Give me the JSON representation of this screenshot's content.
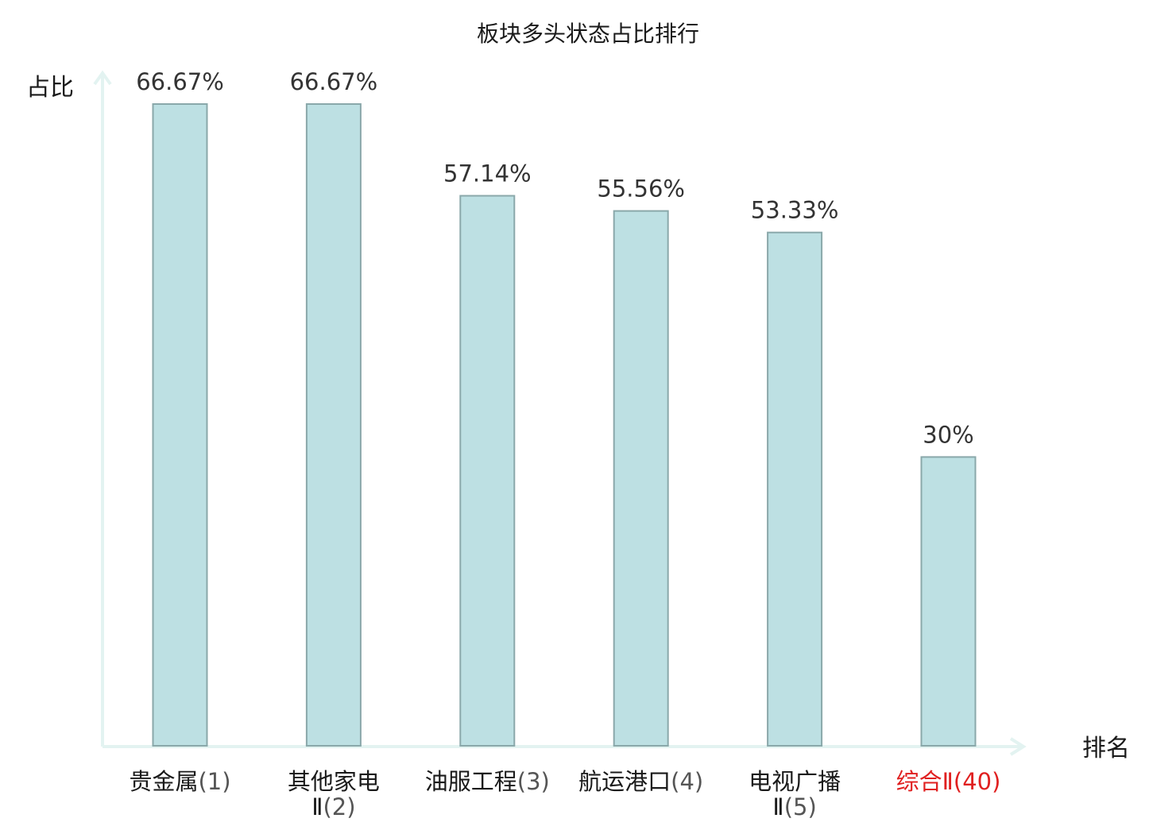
{
  "chart_data": {
    "type": "bar",
    "title": "板块多头状态占比排行",
    "ylabel": "占比",
    "xlabel": "排名",
    "ylim": [
      0,
      70
    ],
    "grid": false,
    "legend": "none",
    "categories": [
      {
        "line1": "贵金属",
        "line1_rank": "(1)",
        "line2": "",
        "line2_rank": "",
        "highlight": false
      },
      {
        "line1": "其他家电",
        "line1_rank": "",
        "line2": "Ⅱ",
        "line2_rank": "(2)",
        "highlight": false
      },
      {
        "line1": "油服工程",
        "line1_rank": "(3)",
        "line2": "",
        "line2_rank": "",
        "highlight": false
      },
      {
        "line1": "航运港口",
        "line1_rank": "(4)",
        "line2": "",
        "line2_rank": "",
        "highlight": false
      },
      {
        "line1": "电视广播",
        "line1_rank": "",
        "line2": "Ⅱ",
        "line2_rank": "(5)",
        "highlight": false
      },
      {
        "line1": "综合Ⅱ",
        "line1_rank": "(40)",
        "line2": "",
        "line2_rank": "",
        "highlight": true
      }
    ],
    "values": [
      66.67,
      66.67,
      57.14,
      55.56,
      53.33,
      30
    ],
    "value_labels": [
      "66.67%",
      "66.67%",
      "57.14%",
      "55.56%",
      "53.33%",
      "30%"
    ],
    "colors": {
      "bar_fill": "#bde0e3",
      "bar_stroke": "#8aa8aa",
      "axis": "#e3f3f1",
      "highlight": "#e02020"
    }
  }
}
